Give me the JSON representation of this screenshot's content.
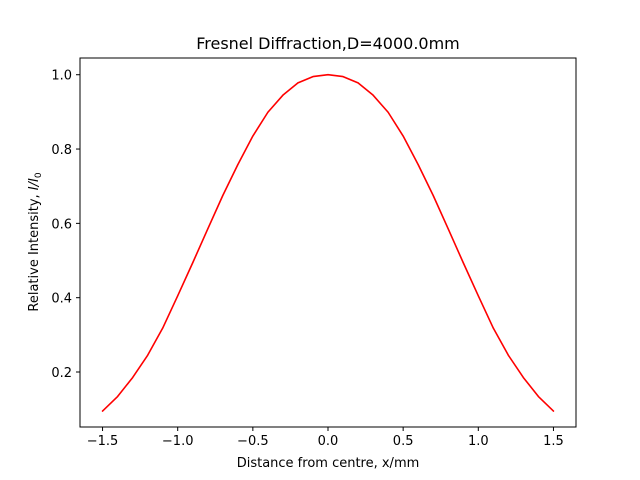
{
  "chart_data": {
    "type": "line",
    "title": "Fresnel Diffraction,D=4000.0mm",
    "xlabel": "Distance from centre, x/mm",
    "ylabel_prefix": "Relative Intensity, ",
    "ylabel_symbol": "I/I",
    "ylabel_subscript": "0",
    "xlim": [
      -1.65,
      1.65
    ],
    "ylim": [
      0.052,
      1.045
    ],
    "x_ticks": [
      -1.5,
      -1.0,
      -0.5,
      0.0,
      0.5,
      1.0,
      1.5
    ],
    "x_tick_labels": [
      "−1.5",
      "−1.0",
      "−0.5",
      "0.0",
      "0.5",
      "1.0",
      "1.5"
    ],
    "y_ticks": [
      0.2,
      0.4,
      0.6,
      0.8,
      1.0
    ],
    "y_tick_labels": [
      "0.2",
      "0.4",
      "0.6",
      "0.8",
      "1.0"
    ],
    "grid": false,
    "series": [
      {
        "color": "#ff0000",
        "x": [
          -1.5,
          -1.4,
          -1.3,
          -1.2,
          -1.1,
          -1.0,
          -0.9,
          -0.8,
          -0.7,
          -0.6,
          -0.5,
          -0.4,
          -0.3,
          -0.2,
          -0.1,
          0.0,
          0.1,
          0.2,
          0.3,
          0.4,
          0.5,
          0.6,
          0.7,
          0.8,
          0.9,
          1.0,
          1.1,
          1.2,
          1.3,
          1.4,
          1.5
        ],
        "y": [
          0.095,
          0.134,
          0.185,
          0.245,
          0.318,
          0.405,
          0.494,
          0.585,
          0.675,
          0.758,
          0.835,
          0.899,
          0.945,
          0.978,
          0.995,
          1.0,
          0.995,
          0.978,
          0.945,
          0.899,
          0.835,
          0.758,
          0.675,
          0.585,
          0.494,
          0.405,
          0.318,
          0.245,
          0.185,
          0.134,
          0.095
        ]
      }
    ]
  }
}
